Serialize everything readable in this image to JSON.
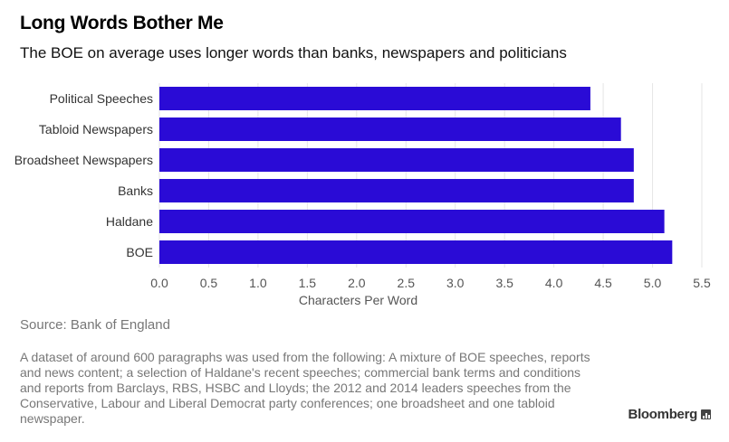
{
  "title": "Long Words Bother Me",
  "subtitle": "The BOE on average uses longer words than banks, newspapers and politicians",
  "source": "Source: Bank of England",
  "note": "A dataset of around 600 paragraphs was used from the following: A mixture of BOE speeches, reports and news content; a selection of Haldane's recent speeches; commercial bank terms and conditions and reports from Barclays, RBS, HSBC and Lloyds; the 2012 and 2014 leaders speeches from the Conservative, Labour and Liberal Democrat party conferences; one broadsheet and one tabloid newspaper.",
  "brand": "Bloomberg",
  "brand_icon": "bar-chart-icon",
  "colors": {
    "bar": "#2a0bd6",
    "grid": "#e6e6e6"
  },
  "chart_data": {
    "type": "bar",
    "orientation": "horizontal",
    "categories": [
      "Political Speeches",
      "Tabloid Newspapers",
      "Broadsheet Newspapers",
      "Banks",
      "Haldane",
      "BOE"
    ],
    "values": [
      4.37,
      4.68,
      4.81,
      4.81,
      5.12,
      5.2
    ],
    "xlabel": "Characters Per Word",
    "ylabel": "",
    "xlim": [
      0,
      5.5
    ],
    "xticks": [
      "0.0",
      "0.5",
      "1.0",
      "1.5",
      "2.0",
      "2.5",
      "3.0",
      "3.5",
      "4.0",
      "4.5",
      "5.0",
      "5.5"
    ],
    "grid": true,
    "legend": "none"
  }
}
